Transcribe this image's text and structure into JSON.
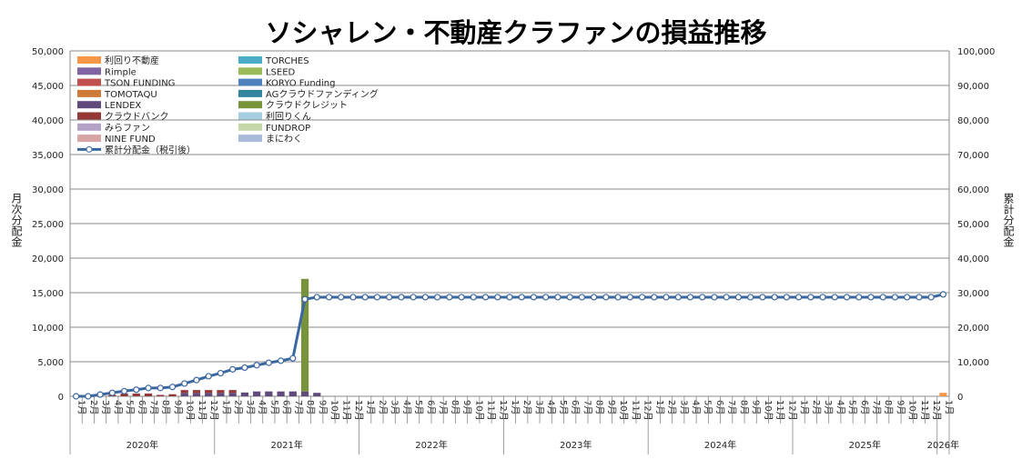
{
  "chart_data": {
    "type": "bar",
    "title": "ソシャレン・不動産クラファンの損益推移",
    "ylabel": "月次分配金",
    "y2label": "累計分配金",
    "ylim": [
      0,
      50000
    ],
    "y2lim": [
      0,
      100000
    ],
    "yticks": [
      "0",
      "5,000",
      "10,000",
      "15,000",
      "20,000",
      "25,000",
      "30,000",
      "35,000",
      "40,000",
      "45,000",
      "50,000"
    ],
    "y2ticks": [
      "0",
      "10,000",
      "20,000",
      "30,000",
      "40,000",
      "50,000",
      "60,000",
      "70,000",
      "80,000",
      "90,000",
      "100,000"
    ],
    "years": [
      "2020年",
      "2021年",
      "2022年",
      "2023年",
      "2024年",
      "2025年",
      "2026年"
    ],
    "month_labels": [
      "1月",
      "2月",
      "3月",
      "4月",
      "5月",
      "6月",
      "7月",
      "8月",
      "9月",
      "10月",
      "11月",
      "12月"
    ],
    "n_months": 73,
    "grid": true,
    "legend_position": "top-left",
    "series": [
      {
        "name": "利回り不動産",
        "color": "#f79646",
        "values": {
          "72": 500
        }
      },
      {
        "name": "Rimple",
        "color": "#8064a2",
        "values": {}
      },
      {
        "name": "TSON FUNDING",
        "color": "#c0504d",
        "values": {}
      },
      {
        "name": "TOMOTAQU",
        "color": "#d07a3a",
        "values": {}
      },
      {
        "name": "LENDEX",
        "color": "#604a7b",
        "values": {
          "9": 500,
          "10": 500,
          "11": 500,
          "12": 500,
          "13": 500,
          "14": 550,
          "15": 700,
          "16": 700,
          "17": 700,
          "18": 700,
          "19": 700,
          "20": 500
        }
      },
      {
        "name": "クラウドバンク",
        "color": "#953735",
        "values": {
          "3": 200,
          "4": 400,
          "5": 400,
          "6": 400,
          "7": 200,
          "8": 300,
          "9": 400,
          "10": 400,
          "11": 400,
          "12": 400,
          "13": 400
        }
      },
      {
        "name": "みらファン",
        "color": "#b3a2c7",
        "values": {}
      },
      {
        "name": "NINE FUND",
        "color": "#d9a5a4",
        "values": {}
      },
      {
        "name": "TORCHES",
        "color": "#4bacc6",
        "values": {}
      },
      {
        "name": "LSEED",
        "color": "#9bbb59",
        "values": {}
      },
      {
        "name": "KORYO Funding",
        "color": "#4f81bd",
        "values": {}
      },
      {
        "name": "AGクラウドファンディング",
        "color": "#31859c",
        "values": {}
      },
      {
        "name": "クラウドクレジット",
        "color": "#77933c",
        "values": {
          "19": 16300
        }
      },
      {
        "name": "利回りくん",
        "color": "#a5cde0",
        "values": {}
      },
      {
        "name": "FUNDROP",
        "color": "#c4d7a9",
        "values": {}
      },
      {
        "name": "まにわく",
        "color": "#a9b9d9",
        "values": {}
      }
    ],
    "line": {
      "name": "累計分配金（税引後）",
      "color": "#3a67a0",
      "values": [
        0,
        0,
        500,
        1000,
        1500,
        1900,
        2400,
        2400,
        2700,
        3700,
        4700,
        5800,
        6700,
        7800,
        8300,
        9000,
        9700,
        10300,
        11000,
        28100,
        28700,
        28700,
        28700,
        28700,
        28700,
        28700,
        28700,
        28700,
        28700,
        28700,
        28700,
        28700,
        28700,
        28700,
        28700,
        28700,
        28700,
        28700,
        28700,
        28700,
        28700,
        28700,
        28700,
        28700,
        28700,
        28700,
        28700,
        28700,
        28700,
        28700,
        28700,
        28700,
        28700,
        28700,
        28700,
        28700,
        28700,
        28700,
        28700,
        28700,
        28700,
        28700,
        28700,
        28700,
        28700,
        28700,
        28700,
        28700,
        28700,
        28700,
        28700,
        28700,
        29500
      ]
    }
  }
}
